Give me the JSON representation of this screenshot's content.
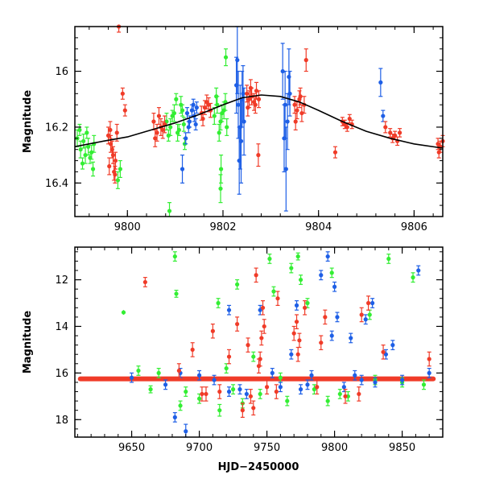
{
  "colors": {
    "green": "#33ee33",
    "red": "#f03b28",
    "blue": "#1e5fe6",
    "model": "#000000"
  },
  "chart_data": [
    {
      "type": "scatter",
      "title": "",
      "xlabel": "",
      "ylabel": "Magnitude",
      "xlim": [
        9798.9,
        9806.6
      ],
      "ylim": [
        16.52,
        15.84
      ],
      "xticks": [
        9800,
        9802,
        9804,
        9806
      ],
      "yticks": [
        16,
        16.2,
        16.4
      ],
      "xtick_labels": [
        "9800",
        "9802",
        "9804",
        "9806"
      ],
      "ytick_labels": [
        "16",
        "16.2",
        "16.4"
      ],
      "model_curve": {
        "name": "model",
        "x": [
          9798.9,
          9799.5,
          9800.0,
          9800.5,
          9801.0,
          9801.5,
          9802.0,
          9802.4,
          9802.8,
          9803.2,
          9803.6,
          9804.0,
          9804.5,
          9805.0,
          9805.5,
          9806.0,
          9806.6
        ],
        "y": [
          16.27,
          16.25,
          16.235,
          16.21,
          16.185,
          16.155,
          16.12,
          16.095,
          16.085,
          16.09,
          16.11,
          16.14,
          16.18,
          16.215,
          16.24,
          16.26,
          16.275
        ]
      },
      "series": [
        {
          "name": "green",
          "x": [
            9798.95,
            9799.02,
            9799.08,
            9799.12,
            9799.18,
            9799.25,
            9799.3,
            9799.06,
            9799.15,
            9799.22,
            9799.0,
            9799.28,
            9800.82,
            9800.9,
            9800.98,
            9801.05,
            9801.12,
            9801.18,
            9800.86,
            9800.94,
            9801.02,
            9801.08,
            9801.15,
            9801.2,
            9801.82,
            9801.88,
            9801.95,
            9802.02,
            9802.08,
            9801.86,
            9801.92,
            9801.98,
            9802.05,
            9801.96,
            9799.8,
            9799.85,
            9800.88,
            9801.95,
            9802.06
          ],
          "y": [
            16.24,
            16.28,
            16.25,
            16.3,
            16.27,
            16.29,
            16.26,
            16.33,
            16.22,
            16.31,
            16.21,
            16.35,
            16.18,
            16.2,
            16.15,
            16.22,
            16.12,
            16.19,
            16.23,
            16.16,
            16.1,
            16.21,
            16.14,
            16.26,
            16.16,
            16.12,
            16.18,
            16.14,
            16.2,
            16.09,
            16.22,
            16.15,
            16.11,
            16.35,
            16.39,
            16.35,
            16.5,
            16.42,
            15.95
          ],
          "err": [
            0.03,
            0.03,
            0.025,
            0.03,
            0.03,
            0.025,
            0.03,
            0.02,
            0.02,
            0.02,
            0.02,
            0.025,
            0.03,
            0.03,
            0.03,
            0.03,
            0.03,
            0.025,
            0.02,
            0.02,
            0.02,
            0.02,
            0.02,
            0.02,
            0.03,
            0.03,
            0.03,
            0.03,
            0.03,
            0.03,
            0.03,
            0.03,
            0.03,
            0.05,
            0.03,
            0.03,
            0.03,
            0.05,
            0.03
          ]
        },
        {
          "name": "red",
          "x": [
            9799.6,
            9799.65,
            9799.7,
            9799.75,
            9799.62,
            9799.68,
            9799.72,
            9799.78,
            9799.64,
            9799.74,
            9800.55,
            9800.62,
            9800.7,
            9800.78,
            9800.58,
            9800.66,
            9800.74,
            9801.55,
            9801.62,
            9801.7,
            9801.58,
            9801.66,
            9801.74,
            9802.5,
            9802.55,
            9802.6,
            9802.65,
            9802.7,
            9802.75,
            9802.52,
            9802.58,
            9802.68,
            9803.5,
            9803.55,
            9803.6,
            9803.65,
            9803.7,
            9803.52,
            9803.62,
            9804.5,
            9804.55,
            9804.6,
            9804.65,
            9804.7,
            9805.5,
            9805.55,
            9805.6,
            9805.65,
            9805.7,
            9806.5,
            9806.55,
            9806.6,
            9806.52,
            9799.9,
            9799.95,
            9802.74,
            9803.74,
            9804.35,
            9805.4,
            9799.82
          ],
          "y": [
            16.23,
            16.26,
            16.3,
            16.32,
            16.34,
            16.28,
            16.36,
            16.22,
            16.21,
            16.37,
            16.18,
            16.22,
            16.2,
            16.19,
            16.24,
            16.16,
            16.21,
            16.15,
            16.13,
            16.12,
            16.17,
            16.11,
            16.14,
            16.08,
            16.1,
            16.09,
            16.11,
            16.07,
            16.1,
            16.13,
            16.06,
            16.12,
            16.12,
            16.14,
            16.1,
            16.15,
            16.12,
            16.18,
            16.09,
            16.18,
            16.19,
            16.2,
            16.17,
            16.19,
            16.22,
            16.24,
            16.23,
            16.25,
            16.22,
            16.26,
            16.27,
            16.25,
            16.29,
            16.08,
            16.14,
            16.3,
            15.96,
            16.29,
            16.2,
            15.84
          ],
          "err": [
            0.03,
            0.03,
            0.03,
            0.03,
            0.03,
            0.03,
            0.03,
            0.03,
            0.03,
            0.03,
            0.03,
            0.03,
            0.03,
            0.03,
            0.03,
            0.03,
            0.03,
            0.025,
            0.025,
            0.025,
            0.025,
            0.025,
            0.025,
            0.03,
            0.03,
            0.03,
            0.03,
            0.03,
            0.03,
            0.03,
            0.03,
            0.03,
            0.03,
            0.03,
            0.03,
            0.03,
            0.03,
            0.03,
            0.03,
            0.015,
            0.015,
            0.015,
            0.015,
            0.015,
            0.015,
            0.015,
            0.015,
            0.015,
            0.015,
            0.02,
            0.02,
            0.02,
            0.02,
            0.02,
            0.02,
            0.04,
            0.04,
            0.02,
            0.02,
            0.02
          ]
        },
        {
          "name": "blue",
          "x": [
            9801.25,
            9801.3,
            9801.35,
            9801.4,
            9801.45,
            9801.28,
            9801.38,
            9801.43,
            9802.28,
            9802.32,
            9802.36,
            9802.4,
            9802.44,
            9802.3,
            9802.38,
            9802.42,
            9802.34,
            9803.25,
            9803.3,
            9803.35,
            9803.4,
            9803.28,
            9803.38,
            9803.32,
            9805.3,
            9805.35,
            9801.22,
            9801.15
          ],
          "y": [
            16.15,
            16.18,
            16.14,
            16.16,
            16.13,
            16.2,
            16.12,
            16.19,
            16.05,
            16.12,
            16.2,
            16.1,
            16.18,
            15.96,
            16.25,
            16.08,
            16.32,
            16.0,
            16.12,
            16.18,
            16.08,
            16.24,
            16.02,
            16.35,
            16.04,
            16.16,
            16.24,
            16.35
          ],
          "err": [
            0.02,
            0.02,
            0.02,
            0.02,
            0.02,
            0.02,
            0.02,
            0.02,
            0.1,
            0.12,
            0.15,
            0.1,
            0.12,
            0.12,
            0.15,
            0.1,
            0.12,
            0.1,
            0.12,
            0.1,
            0.08,
            0.12,
            0.1,
            0.15,
            0.05,
            0.02,
            0.02,
            0.05
          ]
        }
      ]
    },
    {
      "type": "scatter",
      "title": "",
      "xlabel": "HJD−2450000",
      "ylabel": "Magnitude",
      "xlim": [
        9608,
        9880
      ],
      "ylim": [
        18.75,
        10.6
      ],
      "xticks": [
        9650,
        9700,
        9750,
        9800,
        9850
      ],
      "yticks": [
        12,
        14,
        16,
        18
      ],
      "xtick_labels": [
        "9650",
        "9700",
        "9750",
        "9800",
        "9850"
      ],
      "ytick_labels": [
        "12",
        "14",
        "16",
        "18"
      ],
      "baseline": {
        "name": "red-baseline",
        "x_start": 9612,
        "x_end": 9873,
        "y": 16.25
      },
      "series": [
        {
          "name": "green",
          "x": [
            9644,
            9664,
            9682,
            9683,
            9686,
            9700,
            9714,
            9715,
            9728,
            9732,
            9740,
            9752,
            9755,
            9768,
            9773,
            9775,
            9780,
            9795,
            9798,
            9804,
            9826,
            9830,
            9840,
            9858,
            9866,
            9670,
            9690,
            9720,
            9745,
            9760,
            9785,
            9810,
            9850,
            9655,
            9725,
            9765
          ],
          "y": [
            13.4,
            16.7,
            11.0,
            12.6,
            17.4,
            17.1,
            13.0,
            17.6,
            12.2,
            17.3,
            15.3,
            11.1,
            12.5,
            11.5,
            11.0,
            12.0,
            13.0,
            17.2,
            11.7,
            16.9,
            13.5,
            16.3,
            11.1,
            11.9,
            16.5,
            16.0,
            16.8,
            15.8,
            16.9,
            16.2,
            16.7,
            17.0,
            16.4,
            15.9,
            16.7,
            17.2
          ],
          "err": [
            0.1,
            0.15,
            0.2,
            0.15,
            0.2,
            0.2,
            0.2,
            0.25,
            0.2,
            0.2,
            0.2,
            0.2,
            0.2,
            0.2,
            0.15,
            0.2,
            0.2,
            0.2,
            0.2,
            0.2,
            0.2,
            0.2,
            0.2,
            0.2,
            0.2,
            0.2,
            0.2,
            0.2,
            0.2,
            0.2,
            0.2,
            0.2,
            0.2,
            0.2,
            0.2,
            0.2
          ]
        },
        {
          "name": "red",
          "x": [
            9660,
            9685,
            9695,
            9702,
            9710,
            9722,
            9728,
            9732,
            9736,
            9742,
            9745,
            9746,
            9747,
            9748,
            9750,
            9758,
            9770,
            9772,
            9773,
            9774,
            9778,
            9790,
            9793,
            9808,
            9820,
            9825,
            9836,
            9870,
            9705,
            9715,
            9738,
            9757,
            9787,
            9818,
            9740,
            9744
          ],
          "y": [
            12.1,
            15.9,
            15.0,
            16.9,
            14.2,
            15.3,
            13.9,
            17.6,
            14.8,
            11.8,
            15.4,
            14.5,
            13.2,
            14.0,
            16.6,
            12.8,
            14.3,
            13.8,
            15.2,
            14.6,
            13.2,
            14.7,
            13.6,
            17.0,
            13.5,
            13.0,
            15.1,
            15.4,
            16.9,
            16.8,
            17.0,
            16.8,
            16.6,
            16.9,
            17.5,
            15.7
          ],
          "err": [
            0.2,
            0.3,
            0.3,
            0.3,
            0.3,
            0.3,
            0.3,
            0.3,
            0.3,
            0.3,
            0.3,
            0.3,
            0.3,
            0.3,
            0.3,
            0.3,
            0.3,
            0.3,
            0.3,
            0.3,
            0.3,
            0.3,
            0.3,
            0.3,
            0.3,
            0.3,
            0.3,
            0.3,
            0.3,
            0.3,
            0.3,
            0.3,
            0.3,
            0.3,
            0.3,
            0.3
          ]
        },
        {
          "name": "blue",
          "x": [
            9682,
            9690,
            9711,
            9722,
            9730,
            9745,
            9754,
            9768,
            9772,
            9783,
            9790,
            9795,
            9798,
            9800,
            9802,
            9807,
            9812,
            9820,
            9823,
            9828,
            9838,
            9843,
            9862,
            9870,
            9650,
            9675,
            9700,
            9735,
            9760,
            9780,
            9815,
            9830,
            9850,
            9686,
            9722,
            9775
          ],
          "y": [
            17.9,
            18.5,
            16.3,
            13.3,
            16.7,
            13.3,
            16.0,
            15.2,
            13.1,
            16.1,
            11.8,
            11.0,
            14.4,
            12.3,
            13.6,
            16.6,
            14.5,
            16.3,
            13.7,
            13.0,
            15.2,
            14.8,
            11.6,
            16.0,
            16.2,
            16.5,
            16.1,
            16.9,
            16.6,
            16.5,
            16.1,
            16.4,
            16.3,
            16.0,
            16.8,
            16.7
          ],
          "err": [
            0.2,
            0.3,
            0.2,
            0.2,
            0.2,
            0.2,
            0.2,
            0.2,
            0.2,
            0.2,
            0.2,
            0.2,
            0.2,
            0.2,
            0.2,
            0.2,
            0.2,
            0.2,
            0.2,
            0.2,
            0.2,
            0.2,
            0.2,
            0.2,
            0.2,
            0.2,
            0.2,
            0.2,
            0.2,
            0.2,
            0.2,
            0.2,
            0.2,
            0.2,
            0.2,
            0.2
          ]
        }
      ]
    }
  ]
}
